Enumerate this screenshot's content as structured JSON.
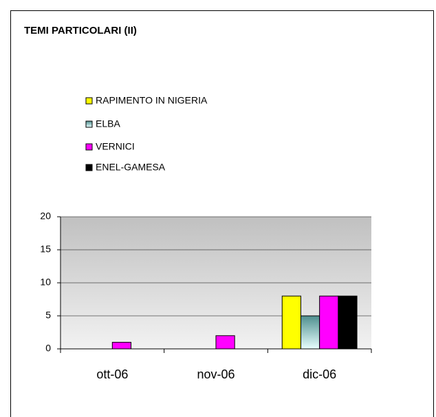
{
  "chart_data": {
    "type": "bar",
    "title": "TEMI PARTICOLARI (II)",
    "categories": [
      "ott-06",
      "nov-06",
      "dic-06"
    ],
    "series": [
      {
        "name": "RAPIMENTO IN NIGERIA",
        "color": "#ffff00",
        "values": [
          0,
          0,
          8
        ]
      },
      {
        "name": "ELBA",
        "color": "#4f8f8f",
        "values": [
          0,
          0,
          5
        ]
      },
      {
        "name": "VERNICI",
        "color": "#ff00ff",
        "values": [
          1,
          2,
          8
        ]
      },
      {
        "name": "ENEL-GAMESA",
        "color": "#000000",
        "values": [
          0,
          0,
          8
        ]
      }
    ],
    "ylim": [
      0,
      20
    ],
    "yticks": [
      0,
      5,
      10,
      15,
      20
    ],
    "grid": true,
    "legend": "top"
  }
}
